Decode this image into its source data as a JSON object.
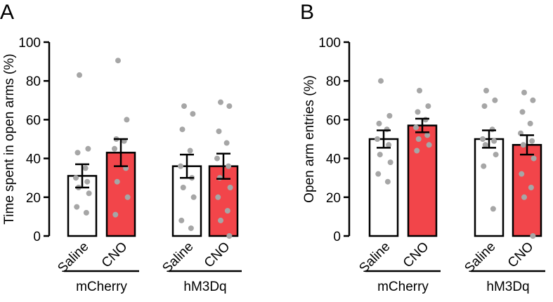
{
  "chart_data": [
    {
      "type": "bar",
      "panel": "A",
      "title": "",
      "xlabel": "",
      "ylabel": "Time spent in open arms (%)",
      "ylim": [
        0,
        100
      ],
      "yticks": [
        0,
        20,
        40,
        60,
        80,
        100
      ],
      "categories": [
        "Saline",
        "CNO",
        "Saline",
        "CNO"
      ],
      "groups": [
        {
          "name": "mCherry",
          "members": [
            0,
            1
          ]
        },
        {
          "name": "hM3Dq",
          "members": [
            2,
            3
          ]
        }
      ],
      "values": [
        31,
        43,
        36,
        36
      ],
      "sem": [
        6,
        7,
        6,
        6.5
      ],
      "points": [
        [
          83,
          45,
          43,
          35,
          30,
          28,
          25,
          22,
          15,
          12
        ],
        [
          90.5,
          60,
          50,
          49,
          45,
          35,
          28,
          20,
          11
        ],
        [
          67,
          63,
          55,
          44,
          36,
          30,
          25,
          20,
          8,
          4
        ],
        [
          69,
          67,
          54,
          48,
          40,
          36,
          30,
          25,
          20,
          13,
          8,
          0
        ]
      ],
      "bar_colors": [
        "#ffffff",
        "#f2454a",
        "#ffffff",
        "#f2454a"
      ]
    },
    {
      "type": "bar",
      "panel": "B",
      "title": "",
      "xlabel": "",
      "ylabel": "Open arm entries (%)",
      "ylim": [
        0,
        100
      ],
      "yticks": [
        0,
        20,
        40,
        60,
        80,
        100
      ],
      "categories": [
        "Saline",
        "CNO",
        "Saline",
        "CNO"
      ],
      "groups": [
        {
          "name": "mCherry",
          "members": [
            0,
            1
          ]
        },
        {
          "name": "hM3Dq",
          "members": [
            2,
            3
          ]
        }
      ],
      "values": [
        50,
        57,
        50,
        47
      ],
      "sem": [
        4.5,
        3.5,
        4.5,
        5
      ],
      "points": [
        [
          80,
          62,
          58,
          55,
          50,
          47,
          42,
          38,
          32,
          28
        ],
        [
          75,
          67,
          64,
          60,
          56,
          52,
          50,
          47,
          44
        ],
        [
          75,
          70,
          67,
          55,
          50,
          49,
          47,
          42,
          36,
          14
        ],
        [
          74,
          70,
          64,
          58,
          53,
          49,
          47,
          40,
          32,
          25,
          20,
          0
        ]
      ],
      "bar_colors": [
        "#ffffff",
        "#f2454a",
        "#ffffff",
        "#f2454a"
      ]
    }
  ]
}
